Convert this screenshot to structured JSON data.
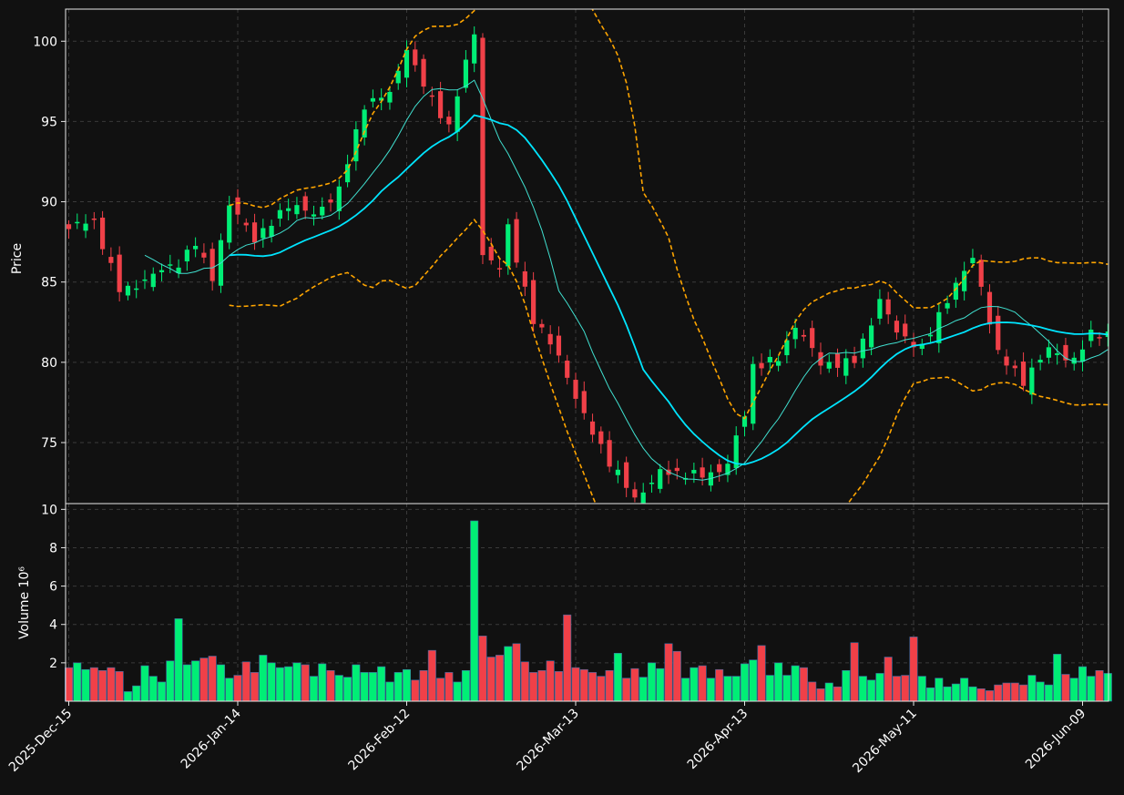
{
  "chart_data": {
    "type": "candlestick",
    "grid": true,
    "style": "dark",
    "x_tick_labels": [
      "2025-Dec-15",
      "2026-Jan-14",
      "2026-Feb-12",
      "2026-Mar-13",
      "2026-Apr-13",
      "2026-May-11",
      "2026-Jun-09"
    ],
    "x_tick_indices": [
      0,
      20,
      40,
      60,
      80,
      100,
      120
    ],
    "n_sessions": 124,
    "price_panel": {
      "ylabel": "Price",
      "ylim": [
        71.2,
        102.0
      ],
      "yticks": [
        75,
        80,
        85,
        90,
        95,
        100
      ],
      "keypoints": [
        [
          0,
          88.3
        ],
        [
          3,
          88.6
        ],
        [
          6,
          84.7
        ],
        [
          10,
          85.2
        ],
        [
          13,
          86.2
        ],
        [
          15,
          87.6
        ],
        [
          17,
          85.4
        ],
        [
          19,
          89.5
        ],
        [
          22,
          87.8
        ],
        [
          26,
          89.9
        ],
        [
          29,
          88.9
        ],
        [
          32,
          91.0
        ],
        [
          35,
          96.0
        ],
        [
          38,
          96.5
        ],
        [
          40,
          99.8
        ],
        [
          43,
          96.3
        ],
        [
          45,
          94.5
        ],
        [
          48,
          100.5
        ],
        [
          49,
          87.0
        ],
        [
          51,
          86.1
        ],
        [
          52,
          88.3
        ],
        [
          55,
          82.4
        ],
        [
          58,
          80.7
        ],
        [
          61,
          76.5
        ],
        [
          64,
          73.6
        ],
        [
          67,
          71.8
        ],
        [
          70,
          73.0
        ],
        [
          72,
          72.9
        ],
        [
          75,
          73.1
        ],
        [
          78,
          73.7
        ],
        [
          80,
          76.5
        ],
        [
          81,
          79.6
        ],
        [
          84,
          80.4
        ],
        [
          86,
          82.5
        ],
        [
          89,
          79.6
        ],
        [
          93,
          80.3
        ],
        [
          96,
          83.8
        ],
        [
          98,
          81.6
        ],
        [
          101,
          81.1
        ],
        [
          104,
          84.0
        ],
        [
          107,
          86.2
        ],
        [
          108,
          84.6
        ],
        [
          110,
          80.8
        ],
        [
          113,
          78.8
        ],
        [
          116,
          80.6
        ],
        [
          119,
          80.4
        ],
        [
          121,
          81.8
        ],
        [
          123,
          81.6
        ]
      ],
      "colors": {
        "up": "#00ee76",
        "down": "#f04048",
        "ma_fast": "#40e0d0",
        "ma_slow": "#00e5ff",
        "bands": "#ffa500"
      },
      "overlays": [
        {
          "kind": "moving-average",
          "period": 10
        },
        {
          "kind": "moving-average",
          "period": 20
        },
        {
          "kind": "envelope",
          "period": 20
        }
      ]
    },
    "volume_panel": {
      "ylabel": "Volume  10⁶",
      "ylim": [
        0,
        10.3
      ],
      "yticks": [
        2,
        4,
        6,
        8,
        10
      ],
      "values": [
        1.75,
        2.0,
        1.65,
        1.75,
        1.6,
        1.75,
        1.55,
        0.5,
        0.8,
        1.85,
        1.3,
        1.0,
        2.1,
        4.3,
        1.9,
        2.1,
        2.25,
        2.35,
        1.9,
        1.2,
        1.35,
        2.05,
        1.5,
        2.4,
        2.0,
        1.75,
        1.8,
        2.0,
        1.9,
        1.3,
        1.95,
        1.6,
        1.35,
        1.25,
        1.9,
        1.5,
        1.5,
        1.8,
        1.0,
        1.5,
        1.65,
        1.1,
        1.6,
        2.65,
        1.2,
        1.5,
        1.0,
        1.6,
        9.4,
        3.4,
        2.3,
        2.4,
        2.85,
        3.0,
        2.05,
        1.5,
        1.6,
        2.1,
        1.55,
        4.5,
        1.75,
        1.65,
        1.5,
        1.3,
        1.6,
        2.5,
        1.2,
        1.7,
        1.25,
        2.0,
        1.7,
        3.0,
        2.6,
        1.2,
        1.75,
        1.85,
        1.2,
        1.65,
        1.3,
        1.3,
        1.95,
        2.15,
        2.9,
        1.35,
        2.0,
        1.35,
        1.85,
        1.75,
        1.0,
        0.65,
        0.95,
        0.75,
        1.6,
        3.05,
        1.3,
        1.1,
        1.45,
        2.3,
        1.3,
        1.35,
        3.35,
        1.3,
        0.7,
        1.2,
        0.75,
        0.9,
        1.2,
        0.75,
        0.65,
        0.55,
        0.85,
        0.95,
        0.95,
        0.85,
        1.35,
        1.0,
        0.85,
        2.45,
        1.4,
        1.2,
        1.8,
        1.3,
        1.6,
        1.45
      ]
    }
  }
}
